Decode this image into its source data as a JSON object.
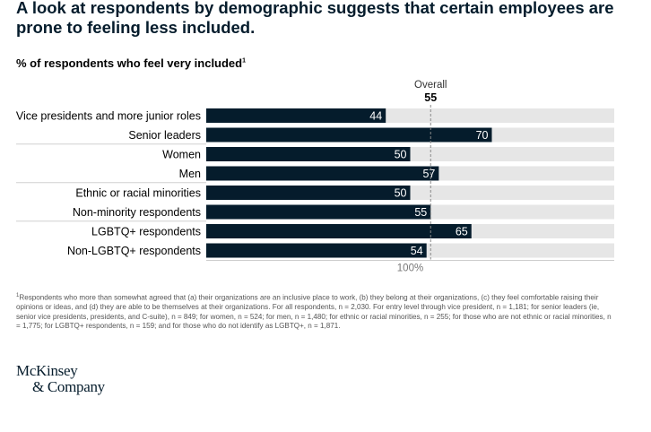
{
  "headline": "A look at respondents by demographic suggests that certain employees are prone to feeling less included.",
  "subtitle": "% of respondents who feel very included",
  "subtitle_footnote_mark": "1",
  "chart_data": {
    "type": "bar",
    "orientation": "horizontal",
    "categories": [
      "Vice presidents and more junior roles",
      "Senior leaders",
      "Women",
      "Men",
      "Ethnic or racial minorities",
      "Non-minority respondents",
      "LGBTQ+ respondents",
      "Non-LGBTQ+ respondents"
    ],
    "values": [
      44,
      70,
      50,
      57,
      50,
      55,
      65,
      54
    ],
    "xlim": [
      0,
      100
    ],
    "reference_line": {
      "label": "Overall",
      "value": 55
    },
    "axis_end_label": "100%",
    "grid": false,
    "colors": {
      "bar": "#051c2c",
      "track": "#e6e6e6",
      "label_on_bar": "#ffffff",
      "reference": "#888888"
    }
  },
  "footnote_mark": "1",
  "footnote": "Respondents who more than somewhat agreed that (a) their organizations are an inclusive place to work, (b) they belong at their organizations, (c) they feel comfortable raising their opinions or ideas, and (d) they are able to be themselves at their organizations. For all respondents, n = 2,030. For entry level through vice president, n = 1,181; for senior leaders (ie, senior vice presidents, presidents, and C-suite), n = 849; for women, n = 524; for men, n = 1,480; for ethnic or racial minorities, n = 255; for those who are not ethnic or racial minorities, n = 1,775; for LGBTQ+ respondents, n = 159; and for those who do not identify as LGBTQ+, n = 1,871.",
  "logo": {
    "line1": "McKinsey",
    "line2": "& Company"
  }
}
